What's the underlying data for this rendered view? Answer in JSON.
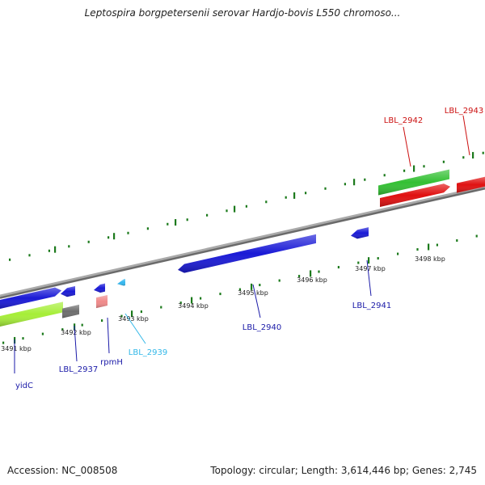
{
  "title": "Leptospira borgpetersenii serovar Hardjo-bovis L550 chromoso...",
  "footer": {
    "accession": "Accession: NC_008508",
    "summary": "Topology: circular; Length: 3,614,446 bp; Genes: 2,745"
  },
  "colors": {
    "backbone": "#8a8a8a",
    "tick": "#1c7a1c",
    "blue_cds": "#1a1ad6",
    "red_cds": "#e01010",
    "green_cds": "#33c033",
    "yellowgreen_cds": "#a6ee38",
    "gray_feature": "#6e6e6e",
    "pink_feature": "#f08a8a",
    "cyan_feature": "#33b8f0",
    "label_dark_blue": "#1a1aa8",
    "label_red": "#cc1111",
    "label_cyan": "#33b8e8"
  },
  "kbp_ticks": [
    "3491 kbp",
    "3492 kbp",
    "3493 kbp",
    "3494 kbp",
    "3495 kbp",
    "3496 kbp",
    "3497 kbp",
    "3498 kbp"
  ],
  "genes": [
    {
      "name": "yidC",
      "color": "label_dark_blue"
    },
    {
      "name": "LBL_2937",
      "color": "label_dark_blue"
    },
    {
      "name": "rpmH",
      "color": "label_dark_blue"
    },
    {
      "name": "LBL_2939",
      "color": "label_cyan"
    },
    {
      "name": "LBL_2940",
      "color": "label_dark_blue"
    },
    {
      "name": "LBL_2941",
      "color": "label_dark_blue"
    },
    {
      "name": "LBL_2942",
      "color": "label_red"
    },
    {
      "name": "LBL_2943",
      "color": "label_red"
    }
  ]
}
